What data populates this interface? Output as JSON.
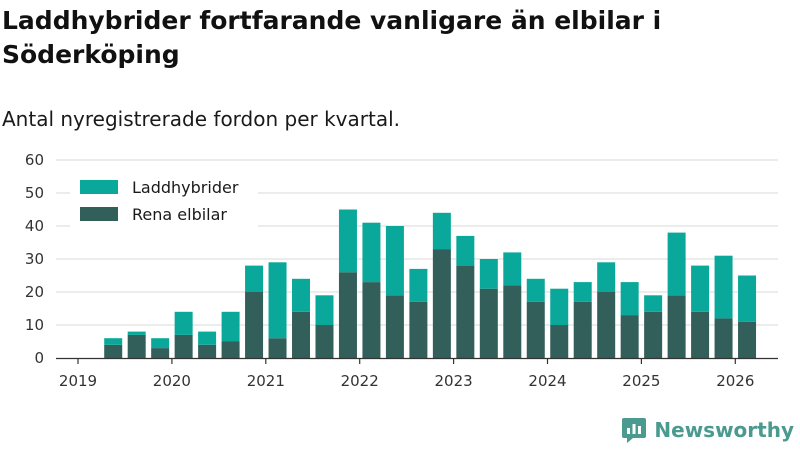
{
  "title": "Laddhybrider fortfarande vanligare än elbilar i Söderköping",
  "subtitle": "Antal nyregistrerade fordon per kvartal.",
  "brand": {
    "name": "Newsworthy",
    "icon": "newsworthy-logo-icon"
  },
  "colors": {
    "laddhybrider": "#0aa89a",
    "elbilar": "#335f5b",
    "grid": "#d9d9d9",
    "axis": "#333333"
  },
  "chart_data": {
    "type": "bar",
    "stacked": true,
    "ylim": [
      0,
      60
    ],
    "yticks": [
      0,
      10,
      20,
      30,
      40,
      50,
      60
    ],
    "xticks": [
      "2019",
      "2020",
      "2021",
      "2022",
      "2023",
      "2024",
      "2025",
      "2026"
    ],
    "legend_position": "top-left",
    "categories": [
      "2019 Q2",
      "2019 Q3",
      "2019 Q4",
      "2020 Q1",
      "2020 Q2",
      "2020 Q3",
      "2020 Q4",
      "2021 Q1",
      "2021 Q2",
      "2021 Q3",
      "2021 Q4",
      "2022 Q1",
      "2022 Q2",
      "2022 Q3",
      "2022 Q4",
      "2023 Q1",
      "2023 Q2",
      "2023 Q3",
      "2023 Q4",
      "2024 Q1",
      "2024 Q2",
      "2024 Q3",
      "2024 Q4",
      "2025 Q1",
      "2025 Q2",
      "2025 Q3",
      "2025 Q4",
      "2026 Q1"
    ],
    "series": [
      {
        "name": "Rena elbilar",
        "values": [
          4,
          7,
          3,
          7,
          4,
          5,
          20,
          6,
          14,
          10,
          26,
          23,
          19,
          17,
          33,
          28,
          21,
          22,
          17,
          10,
          17,
          20,
          13,
          14,
          19,
          14,
          12,
          11
        ]
      },
      {
        "name": "Laddhybrider",
        "values": [
          2,
          1,
          3,
          7,
          4,
          9,
          8,
          23,
          10,
          9,
          19,
          18,
          21,
          10,
          11,
          9,
          9,
          10,
          7,
          11,
          6,
          9,
          10,
          5,
          19,
          14,
          19,
          14
        ]
      }
    ]
  }
}
